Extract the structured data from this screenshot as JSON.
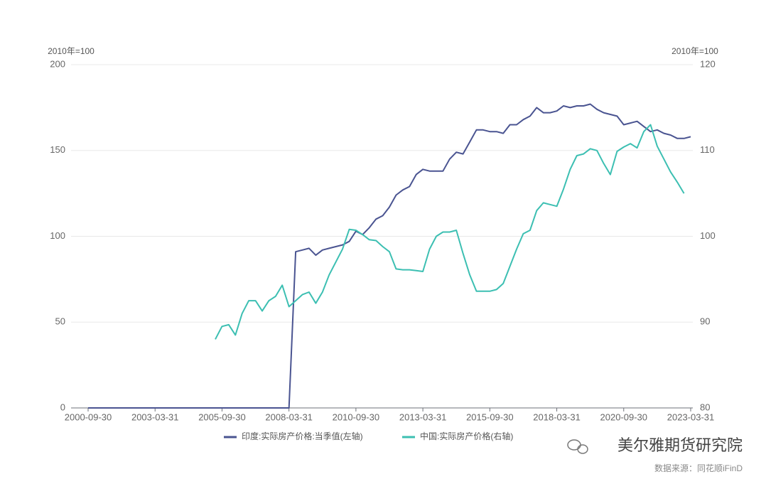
{
  "chart_data": {
    "type": "line",
    "y_unit_label": "2010年=100",
    "y2_unit_label": "2010年=100",
    "categories": [
      "2000-09-30",
      null,
      null,
      null,
      null,
      null,
      null,
      null,
      null,
      null,
      "2003-03-31",
      null,
      null,
      null,
      null,
      null,
      null,
      null,
      null,
      null,
      "2005-09-30",
      null,
      null,
      null,
      null,
      null,
      null,
      null,
      null,
      null,
      "2008-03-31",
      null,
      null,
      null,
      null,
      null,
      null,
      null,
      null,
      null,
      "2010-09-30",
      null,
      null,
      null,
      null,
      null,
      null,
      null,
      null,
      null,
      "2013-03-31",
      null,
      null,
      null,
      null,
      null,
      null,
      null,
      null,
      null,
      "2015-09-30",
      null,
      null,
      null,
      null,
      null,
      null,
      null,
      null,
      null,
      "2018-03-31",
      null,
      null,
      null,
      null,
      null,
      null,
      null,
      null,
      null,
      "2020-09-30",
      null,
      null,
      null,
      null,
      null,
      null,
      null,
      null,
      null,
      "2023-03-31"
    ],
    "ylim": [
      0,
      200
    ],
    "yticks": [
      0,
      50,
      100,
      150,
      200
    ],
    "y2lim": [
      80,
      120
    ],
    "y2ticks": [
      80,
      90,
      100,
      110,
      120
    ],
    "grid": true,
    "legend": "bottom",
    "series": [
      {
        "name": "印度:实际房产价格:当季值(左轴)",
        "color": "#4a5491",
        "values": [
          0,
          0,
          0,
          0,
          0,
          0,
          0,
          0,
          0,
          0,
          0,
          0,
          0,
          0,
          0,
          0,
          0,
          0,
          0,
          0,
          0,
          0,
          0,
          0,
          0,
          0,
          0,
          0,
          0,
          0,
          0,
          91,
          92,
          93,
          89,
          92,
          93,
          94,
          95,
          97,
          103,
          101,
          105,
          110,
          112,
          117,
          124,
          127,
          129,
          136,
          139,
          138,
          138,
          138,
          145,
          149,
          148,
          155,
          162,
          162,
          161,
          161,
          160,
          165,
          165,
          168,
          170,
          175,
          172,
          172,
          173,
          176,
          175,
          176,
          176,
          177,
          174,
          172,
          171,
          170,
          165,
          166,
          167,
          164,
          161,
          162,
          160,
          159,
          157,
          157,
          158
        ]
      },
      {
        "name": "中国:实际房产价格(右轴)",
        "color": "#3cbfb2",
        "axis": "y2",
        "values": [
          null,
          null,
          null,
          null,
          null,
          null,
          null,
          null,
          null,
          null,
          null,
          null,
          null,
          null,
          null,
          null,
          null,
          null,
          null,
          88,
          89.5,
          89.7,
          88.5,
          91,
          92.5,
          92.5,
          91.3,
          92.5,
          93,
          94.3,
          91.8,
          92.5,
          93.2,
          93.5,
          92.2,
          93.5,
          95.5,
          97,
          98.5,
          100.8,
          100.7,
          100.2,
          99.6,
          99.5,
          98.8,
          98.2,
          96.2,
          96.1,
          96.1,
          96,
          95.9,
          98.5,
          100,
          100.5,
          100.5,
          100.7,
          98,
          95.5,
          93.6,
          93.6,
          93.6,
          93.8,
          94.5,
          96.5,
          98.5,
          100.3,
          100.7,
          103,
          103.9,
          103.7,
          103.5,
          105.5,
          107.8,
          109.4,
          109.6,
          110.2,
          110,
          108.5,
          107.2,
          109.9,
          110.4,
          110.8,
          110.3,
          112.2,
          113,
          110.5,
          109,
          107.5,
          106.3,
          105,
          null
        ]
      }
    ],
    "watermark": "美尔雅期货研究院",
    "source": "数据来源：同花顺iFinD"
  }
}
